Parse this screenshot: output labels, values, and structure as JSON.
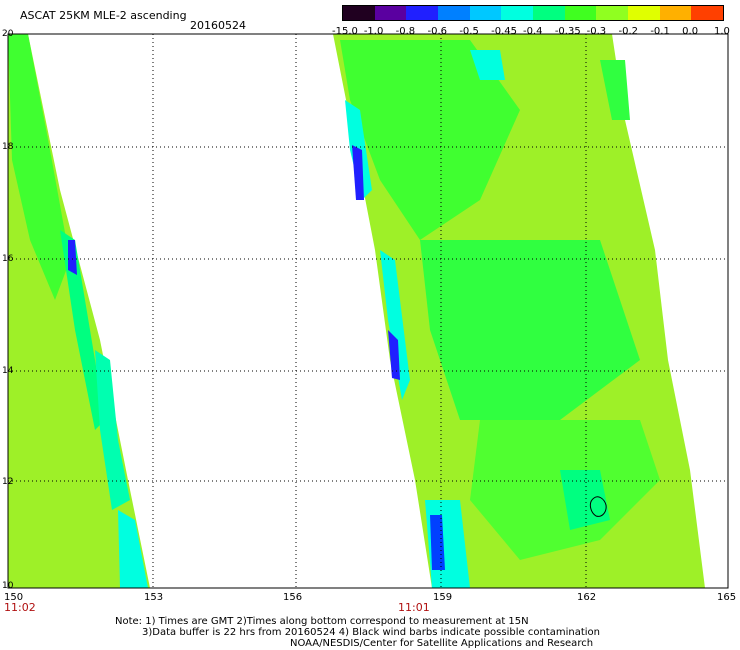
{
  "header": {
    "title": "ASCAT 25KM MLE-2 ascending",
    "date": "20160524"
  },
  "colorbar": {
    "labels": [
      "-15.0",
      "-1.0",
      "-0.8",
      "-0.6",
      "-0.5",
      "-0.45",
      "-0.4",
      "-0.35",
      "-0.3",
      "-0.2",
      "-0.1",
      "0.0",
      "1.0"
    ],
    "colors": [
      "#200020",
      "#5a00a0",
      "#2020ff",
      "#0080ff",
      "#00c8ff",
      "#00ffe0",
      "#00ff80",
      "#40ff20",
      "#90ff20",
      "#e0ff00",
      "#ffb000",
      "#ff4000"
    ]
  },
  "map": {
    "lon_ticks": [
      "150",
      "153",
      "156",
      "159",
      "162",
      "165"
    ],
    "lat_ticks": [
      "20",
      "18",
      "16",
      "14",
      "12",
      "10"
    ],
    "swath_times": [
      "11:02",
      "11:01"
    ],
    "swath_base_color": "#9ef028",
    "grid_color": "#000000"
  },
  "notes": {
    "line1": "Note: 1) Times are GMT 2)Times along bottom correspond to measurement at 15N",
    "line2": "3)Data buffer is 22 hrs from 20160524 4) Black wind barbs indicate possible contamination",
    "line3": "NOAA/NESDIS/Center for Satellite Applications and Research"
  }
}
